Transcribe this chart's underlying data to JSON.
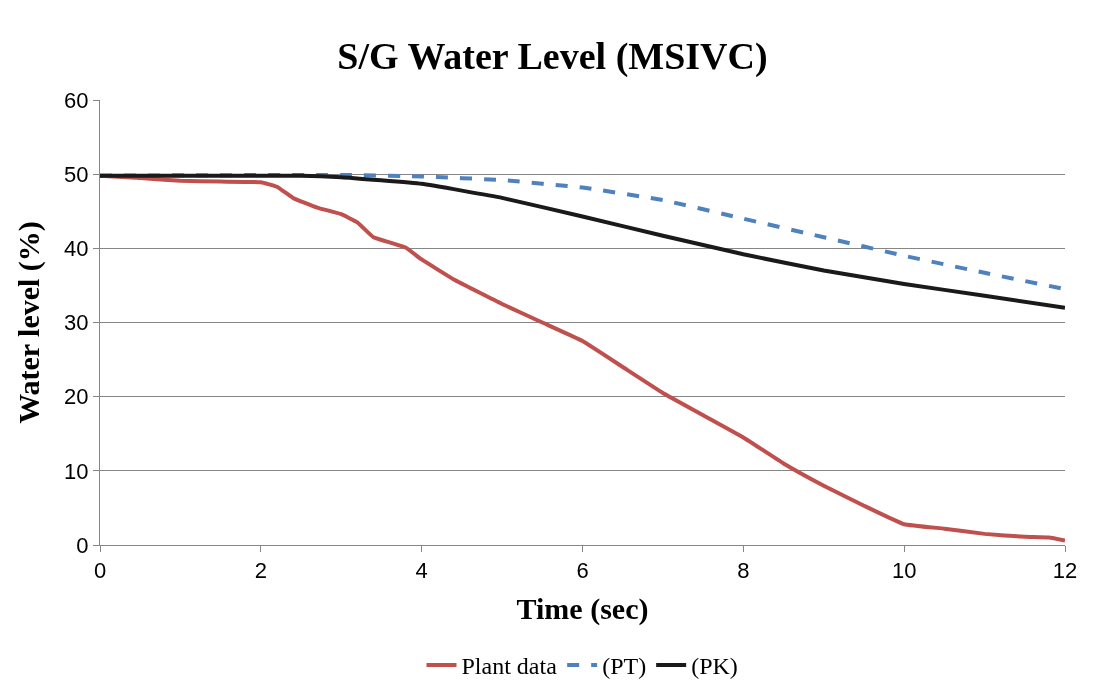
{
  "chart_data": {
    "type": "line",
    "title": "S/G Water Level (MSIVC)",
    "xlabel": "Time (sec)",
    "ylabel": "Water level (%)",
    "xlim": [
      0,
      12
    ],
    "xticks": [
      0,
      2,
      4,
      6,
      8,
      10,
      12
    ],
    "ylim": [
      0,
      60
    ],
    "yticks": [
      0,
      10,
      20,
      30,
      40,
      50,
      60
    ],
    "grid": "y",
    "legend": "bottom",
    "marker": "none",
    "series": [
      {
        "name": "Plant data",
        "color": "#c0504d",
        "line_style": "solid",
        "x": [
          0,
          0.5,
          1,
          1.5,
          2,
          2.2,
          2.4,
          2.7,
          3,
          3.2,
          3.4,
          3.6,
          3.8,
          4,
          4.4,
          5,
          5.5,
          6,
          6.5,
          7,
          7.5,
          8,
          8.5,
          9,
          9.5,
          10,
          10.5,
          11,
          11.5,
          11.8,
          12
        ],
        "values": [
          49.8,
          49.5,
          49.1,
          49,
          48.9,
          48.3,
          46.8,
          45.5,
          44.6,
          43.5,
          41.5,
          40.8,
          40.1,
          38.5,
          35.8,
          32.5,
          30,
          27.5,
          24,
          20.5,
          17.5,
          14.5,
          11,
          8,
          5.3,
          2.8,
          2.2,
          1.5,
          1.1,
          1,
          0.6
        ]
      },
      {
        "name": "(PT)",
        "color": "#4f81bd",
        "line_style": "dashed",
        "x": [
          0,
          3,
          4,
          5,
          6,
          7,
          8,
          9,
          10,
          11,
          12
        ],
        "values": [
          49.8,
          49.9,
          49.7,
          49.2,
          48.2,
          46.5,
          44,
          41.5,
          39,
          36.7,
          34.5
        ]
      },
      {
        "name": "(PK)",
        "color": "#1a1a1a",
        "line_style": "solid",
        "x": [
          0,
          2.5,
          3,
          4,
          5,
          6,
          7,
          8,
          9,
          10,
          11,
          12
        ],
        "values": [
          49.8,
          49.8,
          49.6,
          48.7,
          46.8,
          44.3,
          41.7,
          39.2,
          37,
          35.2,
          33.6,
          32
        ]
      }
    ]
  }
}
